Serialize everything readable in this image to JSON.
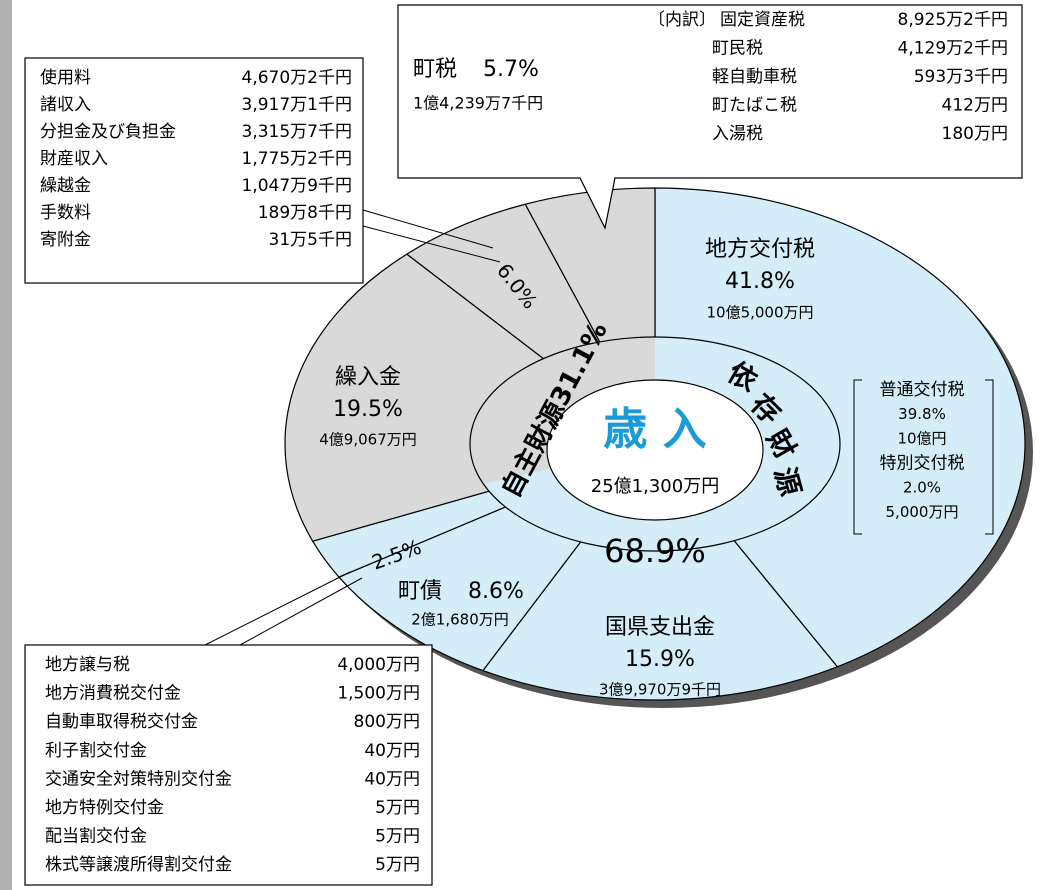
{
  "chart_data": {
    "type": "pie",
    "categories": [
      "地方交付税",
      "国県支出金",
      "町債",
      null,
      "繰入金",
      null,
      "町税"
    ],
    "values": [
      41.8,
      15.9,
      8.6,
      2.5,
      19.5,
      6.0,
      5.7
    ],
    "value_labels": [
      "41.8%",
      "15.9%",
      "8.6%",
      "2.5%",
      "19.5%",
      "6.0%",
      "5.7%"
    ],
    "amounts": [
      "10億5,000万円",
      "3億9,970万9千円",
      "2億1,680万円",
      null,
      "4億9,067万円",
      null,
      "1億4,239万7千円"
    ],
    "colors": [
      "#d4edf9",
      "#d4edf9",
      "#d4edf9",
      "#d4edf9",
      "#d9d9d9",
      "#d9d9d9",
      "#d9d9d9"
    ],
    "groups": [
      {
        "name": "依存財源",
        "value": 68.9,
        "value_label": "68.9%",
        "color": "#d4edf9"
      },
      {
        "name": "自主財源",
        "value": 31.1,
        "value_label": "31.1%",
        "color": "#d9d9d9"
      }
    ],
    "center_title": "歳 入",
    "center_total": "25億1,300万円",
    "grant_breakdown": [
      [
        "普通交付税",
        "39.8%",
        "10億円"
      ],
      [
        "特別交付税",
        "2.0%",
        "5,000万円"
      ]
    ],
    "tax_breakdown_header": "〔内訳〕",
    "tax_breakdown": [
      [
        "固定資産税",
        "8,925万2千円"
      ],
      [
        "町民税",
        "4,129万2千円"
      ],
      [
        "軽自動車税",
        "593万3千円"
      ],
      [
        "町たばこ税",
        "412万円"
      ],
      [
        "入湯税",
        "180万円"
      ]
    ],
    "misc_breakdown": [
      [
        "使用料",
        "4,670万2千円"
      ],
      [
        "諸収入",
        "3,917万1千円"
      ],
      [
        "分担金及び負担金",
        "3,315万7千円"
      ],
      [
        "財産収入",
        "1,775万2千円"
      ],
      [
        "繰越金",
        "1,047万9千円"
      ],
      [
        "手数料",
        "189万8千円"
      ],
      [
        "寄附金",
        "31万5千円"
      ]
    ],
    "transfer_breakdown": [
      [
        "地方譲与税",
        "4,000万円"
      ],
      [
        "地方消費税交付金",
        "1,500万円"
      ],
      [
        "自動車取得税交付金",
        "800万円"
      ],
      [
        "利子割交付金",
        "40万円"
      ],
      [
        "交通安全対策特別交付金",
        "40万円"
      ],
      [
        "地方特例交付金",
        "5万円"
      ],
      [
        "配当割交付金",
        "5万円"
      ],
      [
        "株式等譲渡所得割交付金",
        "5万円"
      ]
    ]
  }
}
